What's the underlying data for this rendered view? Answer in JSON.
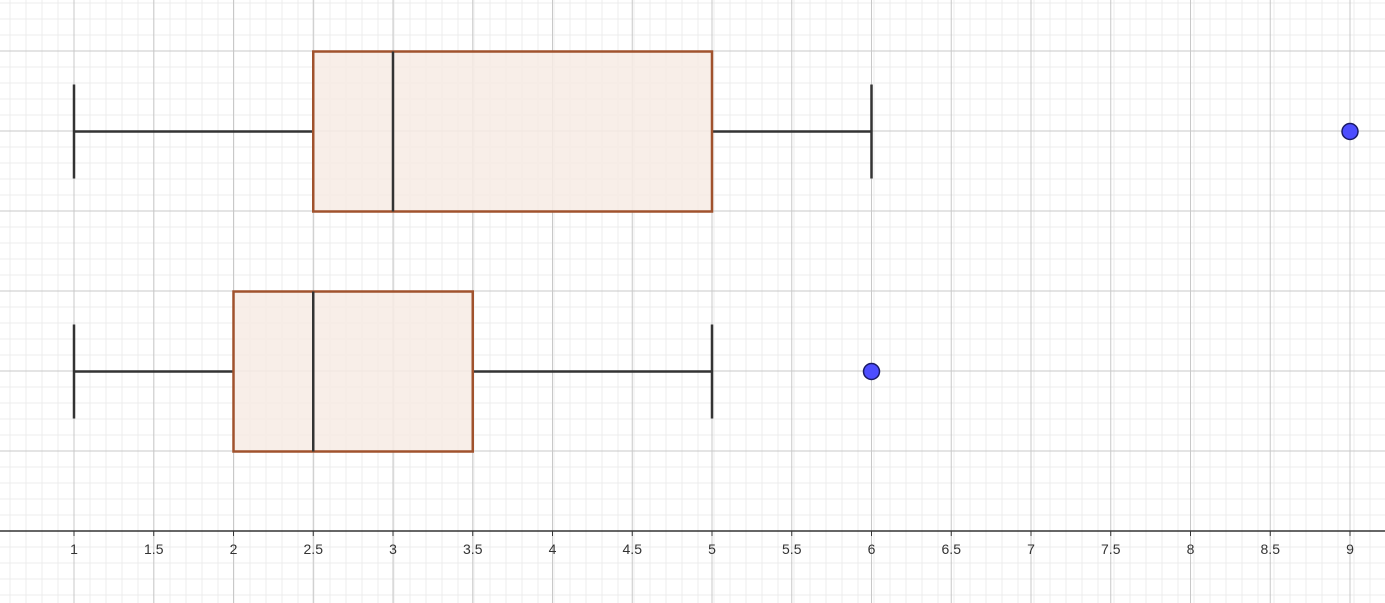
{
  "chart_data": {
    "type": "boxplot",
    "title": "",
    "xlabel": "",
    "ylabel": "",
    "xlim": [
      0.6,
      9.2
    ],
    "grid": true,
    "x_ticks": [
      "1",
      "1.5",
      "2",
      "2.5",
      "3",
      "3.5",
      "4",
      "4.5",
      "5",
      "5.5",
      "6",
      "6.5",
      "7",
      "7.5",
      "8",
      "8.5",
      "9"
    ],
    "x_tick_values": [
      1,
      1.5,
      2,
      2.5,
      3,
      3.5,
      4,
      4.5,
      5,
      5.5,
      6,
      6.5,
      7,
      7.5,
      8,
      8.5,
      9
    ],
    "series": [
      {
        "min": 1,
        "q1": 2.5,
        "median": 3,
        "q3": 5,
        "max": 6,
        "outliers": [
          9
        ]
      },
      {
        "min": 1,
        "q1": 2,
        "median": 2.5,
        "q3": 3.5,
        "max": 5,
        "outliers": [
          6
        ]
      }
    ],
    "colors": {
      "box_stroke": "#a0522d",
      "box_fill": "#f7ebe4",
      "whisker": "#333333",
      "median": "#333333",
      "outlier_fill": "#4d4dff",
      "outlier_stroke": "#1a1a66",
      "grid_major": "#c8c8c8",
      "grid_minor": "#ececec",
      "axis": "#333333"
    }
  }
}
